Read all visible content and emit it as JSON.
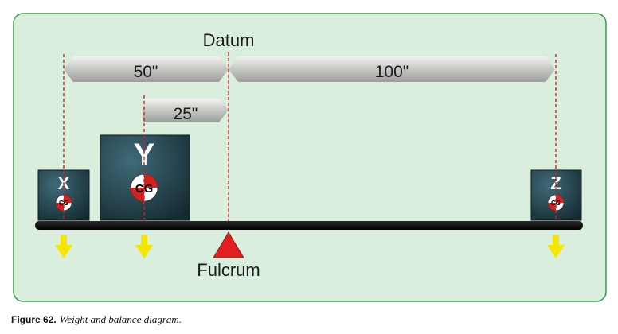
{
  "labels": {
    "datum": "Datum",
    "fulcrum": "Fulcrum",
    "dist_x_to_datum": "50\"",
    "dist_datum_to_z": "100\"",
    "dist_y_to_datum": "25\""
  },
  "weights": [
    {
      "id": "x",
      "letter": "X",
      "cg": "CG"
    },
    {
      "id": "y",
      "letter": "Y",
      "cg": "CG"
    },
    {
      "id": "z",
      "letter": "Z",
      "cg": "CG"
    }
  ],
  "caption": {
    "figure": "Figure 62.",
    "text": "Weight and balance diagram."
  },
  "colors": {
    "panel_bg": "#daeedd",
    "panel_border": "#3a9a4a",
    "datum_line": "#d42020",
    "box_fill": "#1f3a44",
    "beam": "#111111",
    "arrow": "#f5e600",
    "fulcrum": "#e02020"
  }
}
